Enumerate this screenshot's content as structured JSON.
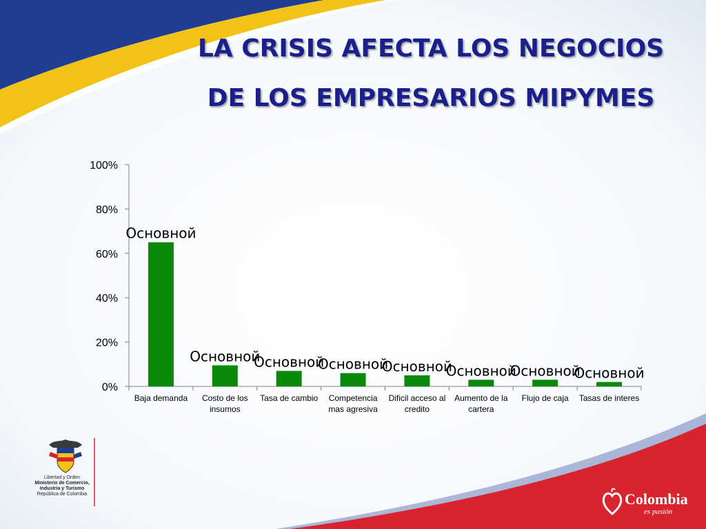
{
  "slide": {
    "title_line_1": "LA CRISIS AFECTA LOS NEGOCIOS",
    "title_line_2": "DE LOS EMPRESARIOS MIPYMES",
    "colors": {
      "title": "#1a1f8c",
      "bar": "#0a8a0a",
      "stripe_blue": "#1f3d91",
      "stripe_yellow": "#f2c316",
      "stripe_red": "#d9232e"
    }
  },
  "chart_data": {
    "type": "bar",
    "categories": [
      "Baja demanda",
      "Costo de los insumos",
      "Tasa de cambio",
      "Competencia mas agresiva",
      "Dificil acceso al credito",
      "Aumento de la cartera",
      "Flujo de caja",
      "Tasas de interes"
    ],
    "category_lines": [
      [
        "Baja demanda"
      ],
      [
        "Costo de los",
        "insumos"
      ],
      [
        "Tasa de cambio"
      ],
      [
        "Competencia",
        "mas agresiva"
      ],
      [
        "Dificil acceso al",
        "credito"
      ],
      [
        "Aumento de la",
        "cartera"
      ],
      [
        "Flujo de caja"
      ],
      [
        "Tasas de interes"
      ]
    ],
    "values": [
      0.65,
      0.095,
      0.07,
      0.06,
      0.05,
      0.03,
      0.03,
      0.02
    ],
    "data_labels": [
      "Основной",
      "Основной",
      "Основной",
      "Основной",
      "Основной",
      "Основной",
      "Основной",
      "Основной"
    ],
    "y_ticks": [
      "0%",
      "20%",
      "40%",
      "60%",
      "80%",
      "100%"
    ],
    "ylim": [
      0,
      1
    ],
    "grid": false,
    "legend": "none"
  },
  "footer": {
    "ministry_lines": [
      "Libertad y Orden",
      "Ministerio de Comercio,",
      "Industria y Turismo",
      "República de Colombia"
    ],
    "brand_name": "Colombia",
    "brand_tagline": "es pasión"
  }
}
